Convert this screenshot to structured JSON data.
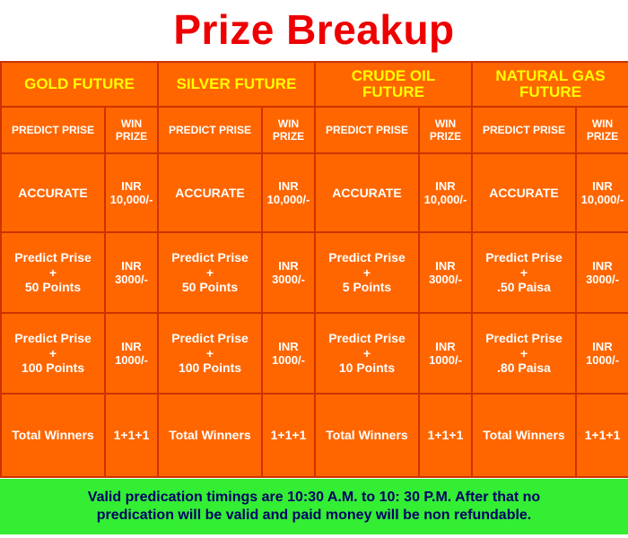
{
  "title": "Prize Breakup",
  "colors": {
    "title": "#ee0000",
    "table_bg": "#ff6600",
    "table_border": "#cc3300",
    "header_text": "#ffff00",
    "cell_text": "#ffffff",
    "footer_bg": "#33ee33",
    "footer_text": "#000066"
  },
  "column_headers": {
    "predict": "PREDICT PRISE",
    "win_line1": "WIN",
    "win_line2": "PRIZE"
  },
  "markets": [
    {
      "name_line1": "GOLD FUTURE",
      "name_line2": "",
      "accurate": {
        "label": "ACCURATE",
        "prize_line1": "INR",
        "prize_line2": "10,000/-"
      },
      "tier2": {
        "line1": "Predict Prise",
        "line2": "+",
        "line3": "50 Points",
        "prize_line1": "INR",
        "prize_line2": "3000/-"
      },
      "tier3": {
        "line1": "Predict Prise",
        "line2": "+",
        "line3": "100 Points",
        "prize_line1": "INR",
        "prize_line2": "1000/-"
      },
      "total": {
        "label": "Total Winners",
        "value": "1+1+1"
      }
    },
    {
      "name_line1": "SILVER FUTURE",
      "name_line2": "",
      "accurate": {
        "label": "ACCURATE",
        "prize_line1": "INR",
        "prize_line2": "10,000/-"
      },
      "tier2": {
        "line1": "Predict Prise",
        "line2": "+",
        "line3": "50 Points",
        "prize_line1": "INR",
        "prize_line2": "3000/-"
      },
      "tier3": {
        "line1": "Predict Prise",
        "line2": "+",
        "line3": "100 Points",
        "prize_line1": "INR",
        "prize_line2": "1000/-"
      },
      "total": {
        "label": "Total Winners",
        "value": "1+1+1"
      }
    },
    {
      "name_line1": "CRUDE OIL",
      "name_line2": "FUTURE",
      "accurate": {
        "label": "ACCURATE",
        "prize_line1": "INR",
        "prize_line2": "10,000/-"
      },
      "tier2": {
        "line1": "Predict Prise",
        "line2": "+",
        "line3": "5 Points",
        "prize_line1": "INR",
        "prize_line2": "3000/-"
      },
      "tier3": {
        "line1": "Predict Prise",
        "line2": "+",
        "line3": "10 Points",
        "prize_line1": "INR",
        "prize_line2": "1000/-"
      },
      "total": {
        "label": "Total Winners",
        "value": "1+1+1"
      }
    },
    {
      "name_line1": "NATURAL GAS",
      "name_line2": "FUTURE",
      "accurate": {
        "label": "ACCURATE",
        "prize_line1": "INR",
        "prize_line2": "10,000/-"
      },
      "tier2": {
        "line1": "Predict Prise",
        "line2": "+",
        "line3": ".50 Paisa",
        "prize_line1": "INR",
        "prize_line2": "3000/-"
      },
      "tier3": {
        "line1": "Predict Prise",
        "line2": "+",
        "line3": ".80 Paisa",
        "prize_line1": "INR",
        "prize_line2": "1000/-"
      },
      "total": {
        "label": "Total Winners",
        "value": "1+1+1"
      }
    }
  ],
  "footer": {
    "line1": "Valid predication timings are 10:30 A.M. to 10: 30 P.M.  After that no",
    "line2": "predication will be valid and paid money will be non refundable."
  }
}
